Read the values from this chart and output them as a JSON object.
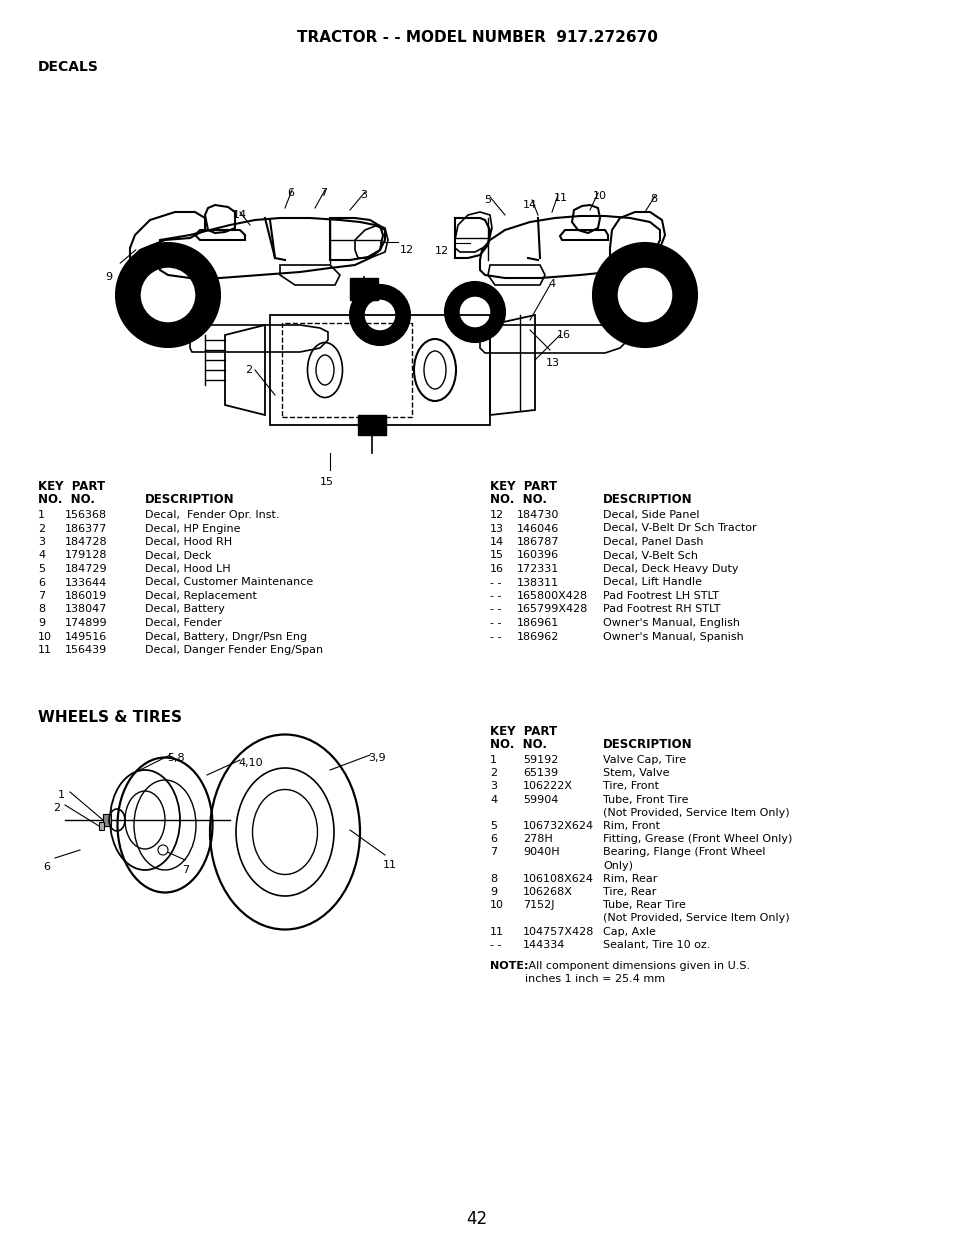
{
  "title": "TRACTOR - - MODEL NUMBER  917.272670",
  "section1": "DECALS",
  "section2": "WHEELS & TIRES",
  "page_number": "42",
  "bg_color": "#ffffff",
  "decals_table_left": [
    [
      "1",
      "156368",
      "Decal,  Fender Opr. Inst."
    ],
    [
      "2",
      "186377",
      "Decal, HP Engine"
    ],
    [
      "3",
      "184728",
      "Decal, Hood RH"
    ],
    [
      "4",
      "179128",
      "Decal, Deck"
    ],
    [
      "5",
      "184729",
      "Decal, Hood LH"
    ],
    [
      "6",
      "133644",
      "Decal, Customer Maintenance"
    ],
    [
      "7",
      "186019",
      "Decal, Replacement"
    ],
    [
      "8",
      "138047",
      "Decal, Battery"
    ],
    [
      "9",
      "174899",
      "Decal, Fender"
    ],
    [
      "10",
      "149516",
      "Decal, Battery, Dngr/Psn Eng"
    ],
    [
      "11",
      "156439",
      "Decal, Danger Fender Eng/Span"
    ]
  ],
  "decals_table_right": [
    [
      "12",
      "184730",
      "Decal, Side Panel"
    ],
    [
      "13",
      "146046",
      "Decal, V-Belt Dr Sch Tractor"
    ],
    [
      "14",
      "186787",
      "Decal, Panel Dash"
    ],
    [
      "15",
      "160396",
      "Decal, V-Belt Sch"
    ],
    [
      "16",
      "172331",
      "Decal, Deck Heavy Duty"
    ],
    [
      "- -",
      "138311",
      "Decal, Lift Handle"
    ],
    [
      "- -",
      "165800X428",
      "Pad Footrest LH STLT"
    ],
    [
      "- -",
      "165799X428",
      "Pad Footrest RH STLT"
    ],
    [
      "- -",
      "186961",
      "Owner's Manual, English"
    ],
    [
      "- -",
      "186962",
      "Owner's Manual, Spanish"
    ]
  ],
  "wheels_table": [
    [
      "1",
      "59192",
      "Valve Cap, Tire",
      false
    ],
    [
      "2",
      "65139",
      "Stem, Valve",
      false
    ],
    [
      "3",
      "106222X",
      "Tire, Front",
      false
    ],
    [
      "4",
      "59904",
      "Tube, Front Tire",
      false
    ],
    [
      "",
      "",
      "(Not Provided, Service Item Only)",
      true
    ],
    [
      "5",
      "106732X624",
      "Rim, Front",
      false
    ],
    [
      "6",
      "278H",
      "Fitting, Grease (Front Wheel Only)",
      false
    ],
    [
      "7",
      "9040H",
      "Bearing, Flange (Front Wheel",
      false
    ],
    [
      "",
      "",
      "Only)",
      true
    ],
    [
      "8",
      "106108X624",
      "Rim, Rear",
      false
    ],
    [
      "9",
      "106268X",
      "Tire, Rear",
      false
    ],
    [
      "10",
      "7152J",
      "Tube, Rear Tire",
      false
    ],
    [
      "",
      "",
      "(Not Provided, Service Item Only)",
      true
    ],
    [
      "11",
      "104757X428",
      "Cap, Axle",
      false
    ],
    [
      "- -",
      "144334",
      "Sealant, Tire 10 oz.",
      false
    ]
  ]
}
